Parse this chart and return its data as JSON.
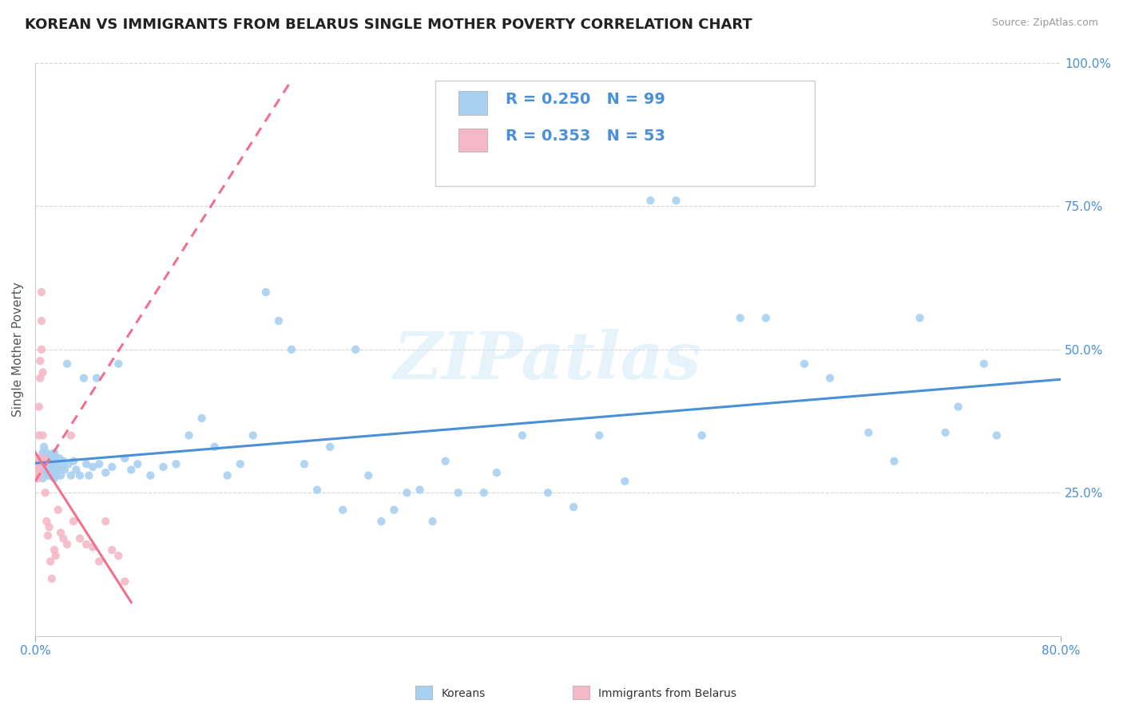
{
  "title": "KOREAN VS IMMIGRANTS FROM BELARUS SINGLE MOTHER POVERTY CORRELATION CHART",
  "source_text": "Source: ZipAtlas.com",
  "ylabel": "Single Mother Poverty",
  "xlim": [
    0.0,
    0.8
  ],
  "ylim": [
    0.0,
    1.0
  ],
  "watermark": "ZIPatlas",
  "legend_r1": "R = 0.250",
  "legend_n1": "N = 99",
  "legend_r2": "R = 0.353",
  "legend_n2": "N = 53",
  "series1_label": "Koreans",
  "series2_label": "Immigrants from Belarus",
  "series1_color": "#a8d0f0",
  "series2_color": "#f5b8c8",
  "series1_line_color": "#4a90d9",
  "series2_line_color": "#f07090",
  "background_color": "#ffffff",
  "title_color": "#222222",
  "axis_color": "#4a90d9",
  "korean_x": [
    0.003,
    0.004,
    0.005,
    0.005,
    0.006,
    0.006,
    0.007,
    0.007,
    0.008,
    0.008,
    0.009,
    0.009,
    0.01,
    0.01,
    0.01,
    0.011,
    0.011,
    0.012,
    0.012,
    0.013,
    0.013,
    0.014,
    0.014,
    0.015,
    0.015,
    0.016,
    0.016,
    0.017,
    0.017,
    0.018,
    0.019,
    0.02,
    0.021,
    0.022,
    0.023,
    0.025,
    0.026,
    0.028,
    0.03,
    0.032,
    0.035,
    0.038,
    0.04,
    0.042,
    0.045,
    0.048,
    0.05,
    0.055,
    0.06,
    0.065,
    0.07,
    0.075,
    0.08,
    0.09,
    0.1,
    0.11,
    0.12,
    0.13,
    0.14,
    0.15,
    0.16,
    0.17,
    0.18,
    0.19,
    0.2,
    0.21,
    0.22,
    0.23,
    0.24,
    0.25,
    0.26,
    0.27,
    0.28,
    0.29,
    0.3,
    0.31,
    0.32,
    0.33,
    0.35,
    0.36,
    0.38,
    0.4,
    0.42,
    0.44,
    0.46,
    0.48,
    0.5,
    0.52,
    0.55,
    0.57,
    0.6,
    0.62,
    0.65,
    0.67,
    0.69,
    0.71,
    0.72,
    0.74,
    0.75
  ],
  "korean_y": [
    0.295,
    0.31,
    0.285,
    0.3,
    0.32,
    0.275,
    0.33,
    0.295,
    0.31,
    0.285,
    0.3,
    0.32,
    0.28,
    0.31,
    0.295,
    0.305,
    0.29,
    0.315,
    0.28,
    0.295,
    0.31,
    0.285,
    0.3,
    0.275,
    0.32,
    0.295,
    0.31,
    0.28,
    0.3,
    0.29,
    0.31,
    0.28,
    0.295,
    0.305,
    0.29,
    0.475,
    0.3,
    0.28,
    0.305,
    0.29,
    0.28,
    0.45,
    0.3,
    0.28,
    0.295,
    0.45,
    0.3,
    0.285,
    0.295,
    0.475,
    0.31,
    0.29,
    0.3,
    0.28,
    0.295,
    0.3,
    0.35,
    0.38,
    0.33,
    0.28,
    0.3,
    0.35,
    0.6,
    0.55,
    0.5,
    0.3,
    0.255,
    0.33,
    0.22,
    0.5,
    0.28,
    0.2,
    0.22,
    0.25,
    0.255,
    0.2,
    0.305,
    0.25,
    0.25,
    0.285,
    0.35,
    0.25,
    0.225,
    0.35,
    0.27,
    0.76,
    0.76,
    0.35,
    0.555,
    0.555,
    0.475,
    0.45,
    0.355,
    0.305,
    0.555,
    0.355,
    0.4,
    0.475,
    0.35
  ],
  "belarus_x": [
    0.001,
    0.001,
    0.001,
    0.001,
    0.001,
    0.001,
    0.001,
    0.001,
    0.001,
    0.001,
    0.001,
    0.001,
    0.002,
    0.002,
    0.002,
    0.002,
    0.002,
    0.002,
    0.003,
    0.003,
    0.003,
    0.003,
    0.003,
    0.004,
    0.004,
    0.005,
    0.005,
    0.005,
    0.006,
    0.006,
    0.007,
    0.008,
    0.009,
    0.01,
    0.011,
    0.012,
    0.013,
    0.015,
    0.016,
    0.018,
    0.02,
    0.022,
    0.025,
    0.028,
    0.03,
    0.035,
    0.04,
    0.045,
    0.05,
    0.055,
    0.06,
    0.065,
    0.07
  ],
  "belarus_y": [
    0.3,
    0.285,
    0.29,
    0.295,
    0.275,
    0.31,
    0.28,
    0.305,
    0.295,
    0.3,
    0.285,
    0.295,
    0.31,
    0.28,
    0.3,
    0.275,
    0.295,
    0.31,
    0.29,
    0.285,
    0.3,
    0.35,
    0.4,
    0.45,
    0.48,
    0.5,
    0.55,
    0.6,
    0.46,
    0.35,
    0.31,
    0.25,
    0.2,
    0.175,
    0.19,
    0.13,
    0.1,
    0.15,
    0.14,
    0.22,
    0.18,
    0.17,
    0.16,
    0.35,
    0.2,
    0.17,
    0.16,
    0.155,
    0.13,
    0.2,
    0.15,
    0.14,
    0.095
  ],
  "belarus_trendline_x": [
    0.0,
    0.2
  ],
  "belarus_trendline_y": [
    0.27,
    0.97
  ]
}
